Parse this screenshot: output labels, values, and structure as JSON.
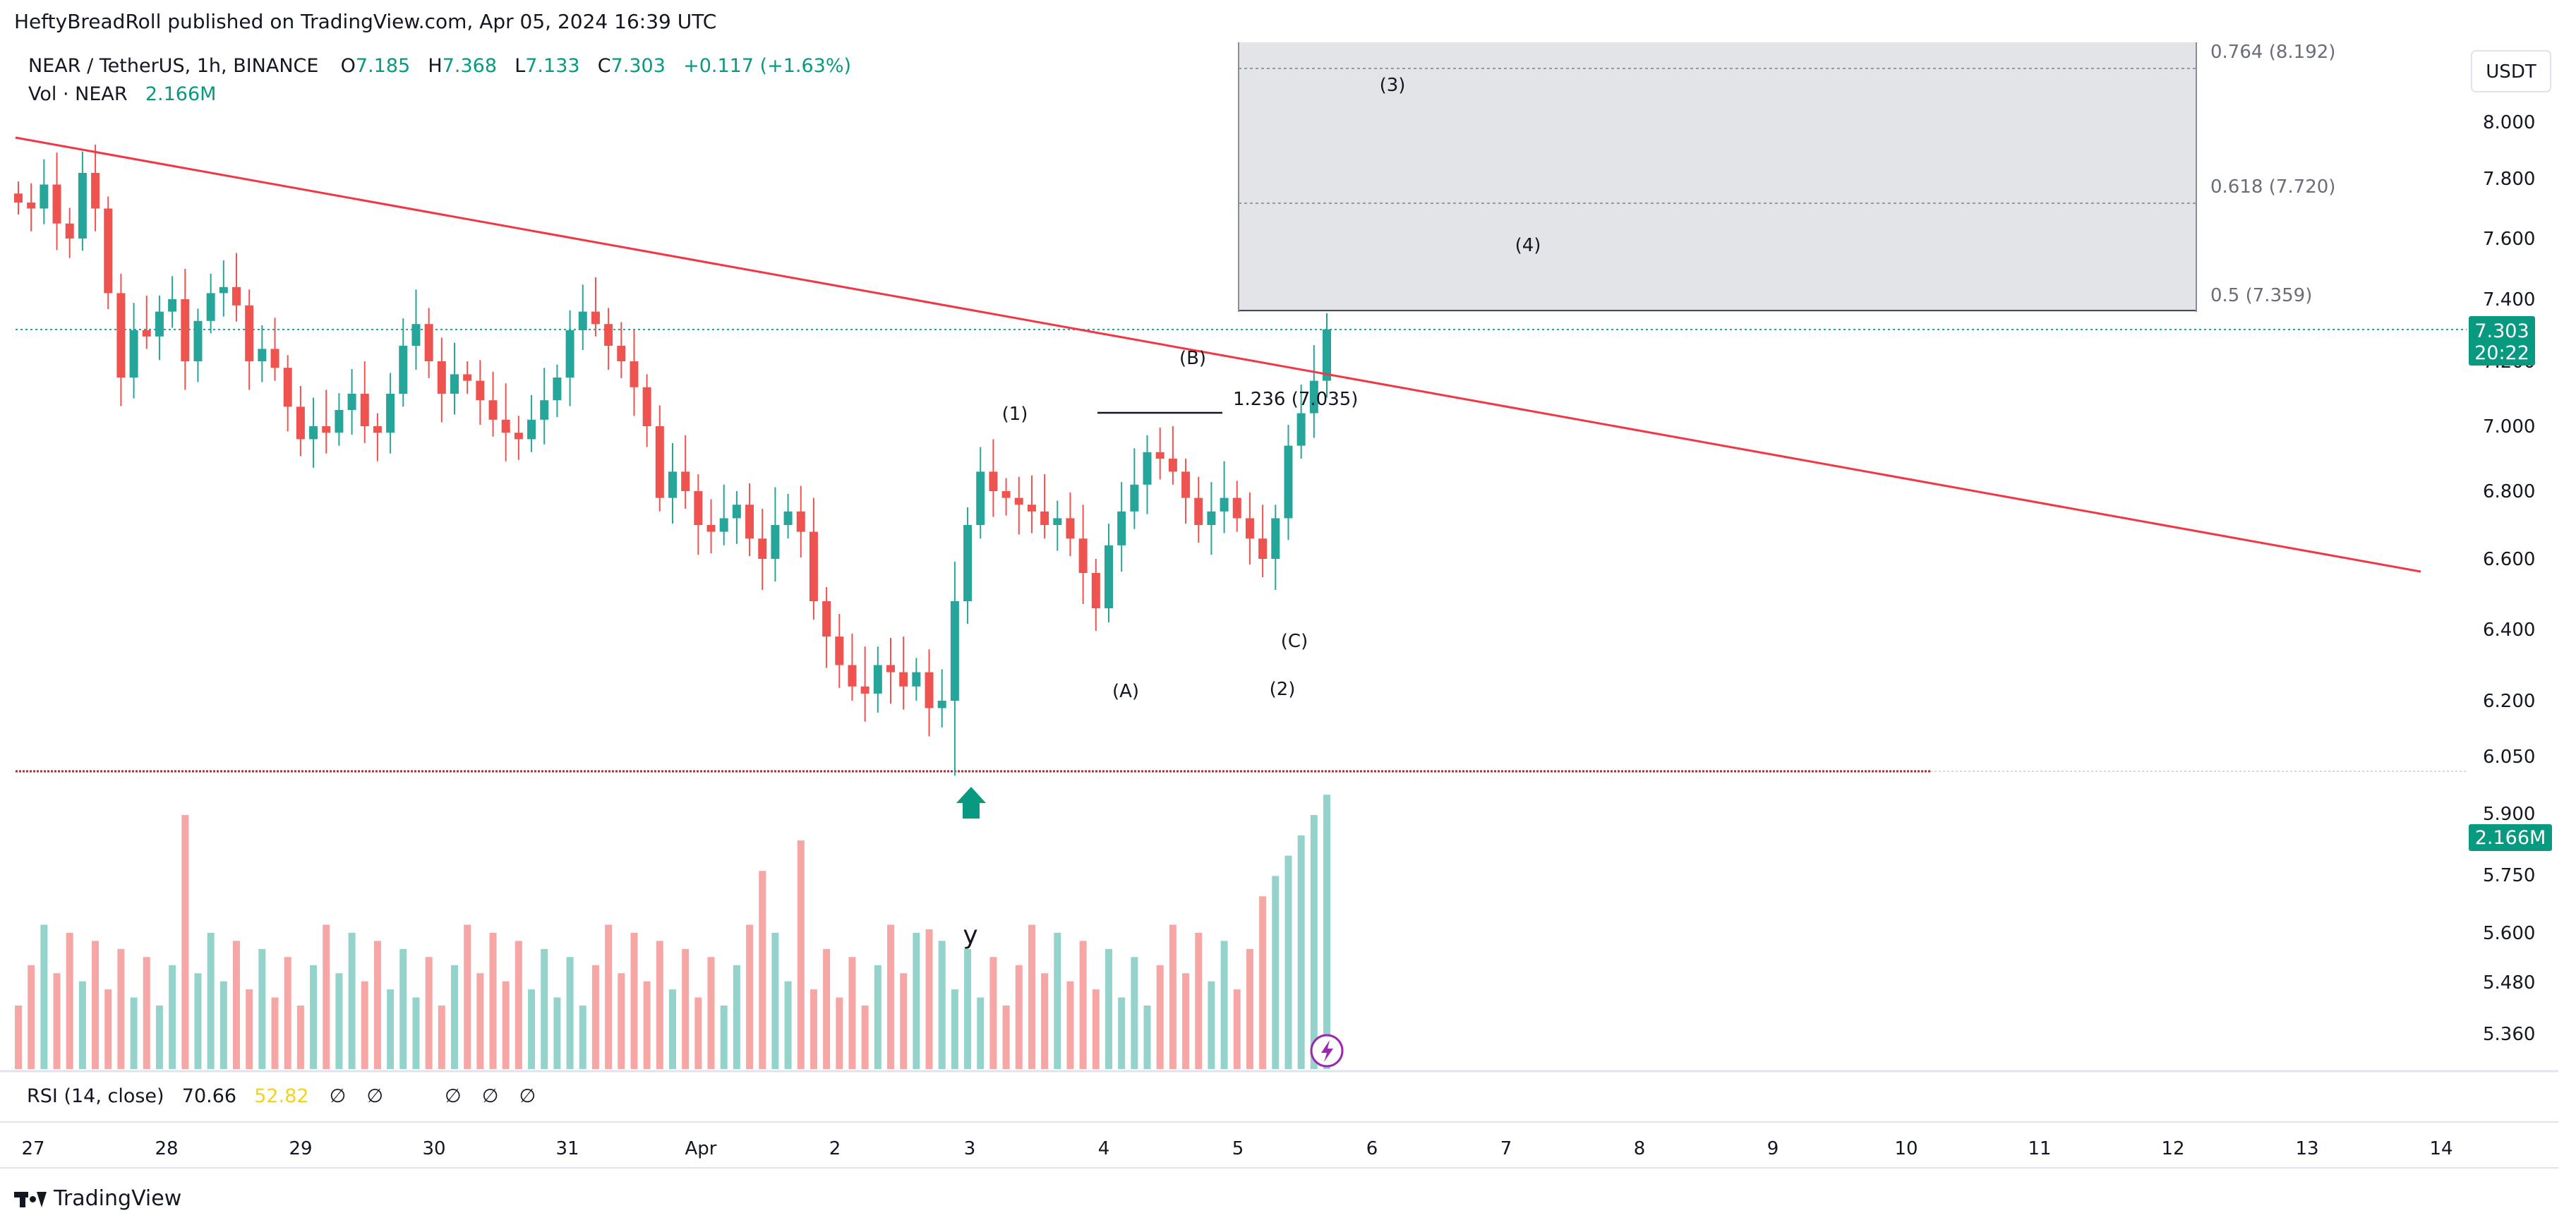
{
  "header": {
    "published": "HeftyBreadRoll published on TradingView.com, Apr 05, 2024 16:39 UTC"
  },
  "legend": {
    "symbol": "NEAR / TetherUS, 1h, BINANCE",
    "o_label": "O",
    "o_value": "7.185",
    "h_label": "H",
    "h_value": "7.368",
    "l_label": "L",
    "l_value": "7.133",
    "c_label": "C",
    "c_value": "7.303",
    "change": "+0.117 (+1.63%)",
    "vol_label": "Vol · NEAR",
    "vol_value": "2.166M"
  },
  "currency": "USDT",
  "price_badge": {
    "price": "7.303",
    "countdown": "20:22"
  },
  "volume_badge": "2.166M",
  "rsi": {
    "label": "RSI (14, close)",
    "value": "70.66",
    "ma_value": "52.82",
    "placeholders": [
      "∅",
      "∅",
      "∅",
      "∅",
      "∅"
    ]
  },
  "footer_brand": "TradingView",
  "colors": {
    "up": "#26a69a",
    "down": "#ef5350",
    "vol_up": "#94d3cc",
    "vol_down": "#f6a6a5",
    "trendline": "#f23645",
    "support": "#b22833",
    "fib_box": "#e3e4e7",
    "accent_green": "#089981",
    "rsi_ma": "#f7d21b",
    "lightning": "#9c27b0"
  },
  "chart_data": {
    "type": "candlestick",
    "symbol": "NEAR / TetherUS",
    "interval": "1h",
    "ylim": [
      5.3,
      8.25
    ],
    "y_ticks": [
      "8.000",
      "7.800",
      "7.600",
      "7.400",
      "7.200",
      "7.000",
      "6.800",
      "6.600",
      "6.400",
      "6.200",
      "6.050",
      "5.900",
      "5.750",
      "5.600",
      "5.480",
      "5.360"
    ],
    "x_ticks": [
      "27",
      "28",
      "29",
      "30",
      "31",
      "Apr",
      "2",
      "3",
      "4",
      "5",
      "6",
      "7",
      "8",
      "9",
      "10",
      "11",
      "12",
      "13",
      "14"
    ],
    "closes": [
      7.72,
      7.7,
      7.78,
      7.65,
      7.6,
      7.82,
      7.7,
      7.42,
      7.15,
      7.3,
      7.28,
      7.36,
      7.4,
      7.2,
      7.33,
      7.42,
      7.44,
      7.38,
      7.2,
      7.24,
      7.18,
      7.06,
      6.96,
      7.0,
      6.98,
      7.05,
      7.1,
      7.0,
      6.98,
      7.1,
      7.25,
      7.32,
      7.2,
      7.1,
      7.16,
      7.14,
      7.08,
      7.02,
      6.98,
      6.96,
      7.02,
      7.08,
      7.15,
      7.3,
      7.36,
      7.32,
      7.25,
      7.2,
      7.12,
      7.0,
      6.78,
      6.86,
      6.8,
      6.7,
      6.68,
      6.72,
      6.76,
      6.66,
      6.6,
      6.7,
      6.74,
      6.68,
      6.48,
      6.38,
      6.3,
      6.24,
      6.22,
      6.3,
      6.28,
      6.24,
      6.28,
      6.18,
      6.2,
      6.48,
      6.7,
      6.86,
      6.8,
      6.78,
      6.76,
      6.74,
      6.7,
      6.72,
      6.66,
      6.56,
      6.46,
      6.64,
      6.74,
      6.82,
      6.92,
      6.9,
      6.86,
      6.78,
      6.7,
      6.74,
      6.78,
      6.72,
      6.66,
      6.6,
      6.72,
      6.94,
      7.04,
      7.14,
      7.303
    ],
    "volume_last": "2.166M",
    "rsi_value": 70.66,
    "rsi_ma": 52.82,
    "support_level": 6.0,
    "trendline": {
      "start_day": "27",
      "end_day": "14"
    },
    "fibonacci": [
      {
        "label": "0.764 (8.192)",
        "level": 8.192
      },
      {
        "label": "0.618 (7.720)",
        "level": 7.72
      },
      {
        "label": "0.5 (7.359)",
        "level": 7.359
      }
    ],
    "fib_extension": {
      "label": "1.236 (7.035)",
      "level": 7.035
    },
    "wave_labels": [
      {
        "text": "(1)",
        "day": "3",
        "price": 7.03
      },
      {
        "text": "(A)",
        "day": "4",
        "price": 6.15
      },
      {
        "text": "(B)",
        "day": "4",
        "price": 7.2
      },
      {
        "text": "(C)",
        "day": "5",
        "price": 6.38
      },
      {
        "text": "(2)",
        "day": "5",
        "price": 6.15
      },
      {
        "text": "(3)",
        "day": "6",
        "price": 8.12
      },
      {
        "text": "(4)",
        "day": "7",
        "price": 7.55
      }
    ],
    "annotations": [
      "y"
    ]
  }
}
